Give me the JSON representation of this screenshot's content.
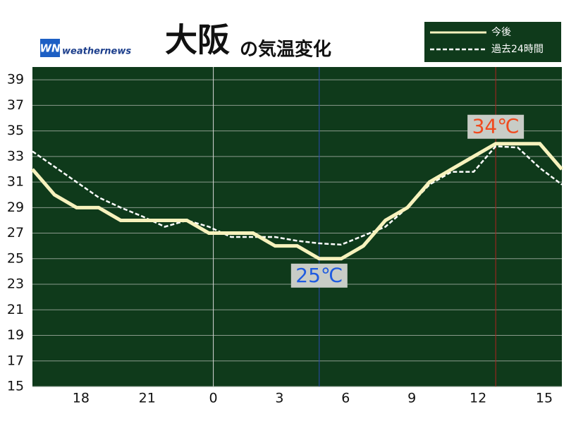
{
  "chart_data": {
    "type": "line",
    "title": "大阪",
    "subtitle": "の気温変化",
    "logo_mark": "WN",
    "logo_text": "weathernews",
    "x": [
      15.8,
      16.8,
      17.8,
      18.8,
      19.8,
      20.8,
      21.8,
      22.8,
      23.8,
      24.8,
      25.8,
      26.8,
      27.8,
      28.8,
      29.8,
      30.8,
      31.8,
      32.8,
      33.8,
      34.8,
      35.8,
      36.8,
      37.8,
      38.8,
      39.8
    ],
    "series": [
      {
        "name": "今後",
        "color": "#f7f2bd",
        "dash": false,
        "values": [
          32,
          30,
          29,
          29,
          28,
          28,
          28,
          28,
          27,
          27,
          27,
          26,
          26,
          25,
          25,
          26,
          28,
          29,
          31,
          32,
          33,
          34,
          34,
          34,
          32
        ]
      },
      {
        "name": "過去24時間",
        "color": "#ffffff",
        "dash": true,
        "values": [
          33.4,
          32.2,
          31,
          29.8,
          29,
          28.3,
          27.5,
          28,
          27.5,
          26.7,
          26.7,
          26.7,
          26.4,
          26.2,
          26.1,
          26.8,
          27.5,
          29,
          30.8,
          31.8,
          31.8,
          33.8,
          33.7,
          32.1,
          30.8
        ]
      }
    ],
    "annotations": [
      {
        "text": "25℃",
        "x": 28.8,
        "y": 25,
        "color": "#1e5be0",
        "line_color": "#2a48b0",
        "position": "below"
      },
      {
        "text": "34℃",
        "x": 36.8,
        "y": 34,
        "color": "#f04a1e",
        "line_color": "#b02020",
        "position": "above"
      }
    ],
    "xlim": [
      15.8,
      39.8
    ],
    "xticks": [
      18,
      21,
      {
        "value": 24,
        "label": "0"
      },
      {
        "value": 27,
        "label": "3"
      },
      {
        "value": 30,
        "label": "6"
      },
      {
        "value": 33,
        "label": "9"
      },
      {
        "value": 36,
        "label": "12"
      },
      {
        "value": 39,
        "label": "15"
      }
    ],
    "midnight_line": 24,
    "ylim": [
      15,
      40
    ],
    "yticks": [
      15,
      17,
      19,
      21,
      23,
      25,
      27,
      29,
      31,
      33,
      35,
      37,
      39
    ],
    "grid": true,
    "legend": "top-right"
  }
}
